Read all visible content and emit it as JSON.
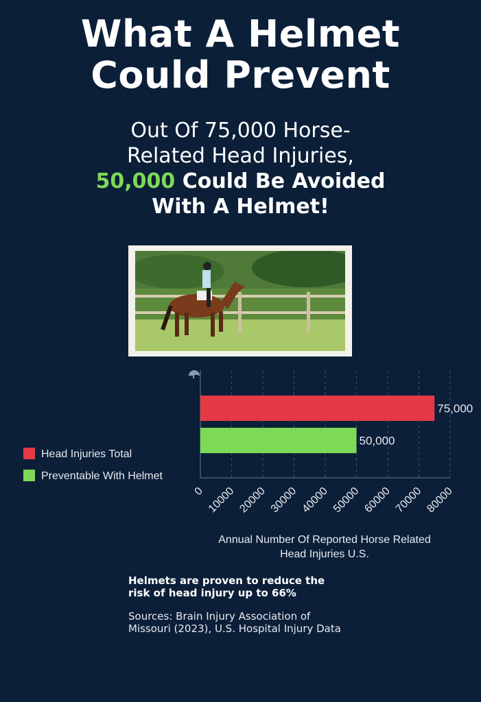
{
  "header": {
    "title_line1": "What A Helmet",
    "title_line2": "Could Prevent"
  },
  "subtitle": {
    "line1": "Out Of 75,000 Horse-",
    "line2": "Related Head Injuries,",
    "highlight": "50,000",
    "line3_rest": " Could Be Avoided",
    "line4": "With A Helmet!"
  },
  "photo": {
    "description_icon": "horse-rider-photo"
  },
  "chart_data": {
    "type": "bar",
    "orientation": "horizontal",
    "categories": [
      "Head Injuries Total",
      "Preventable With Helmet"
    ],
    "values": [
      75000,
      50000
    ],
    "data_labels": [
      "75,000",
      "50,000"
    ],
    "colors": [
      "#e63946",
      "#7ed957"
    ],
    "xlim": [
      0,
      80000
    ],
    "xticks": [
      "0",
      "10000",
      "20000",
      "30000",
      "40000",
      "50000",
      "60000",
      "70000",
      "80000"
    ],
    "xlabel_line1": "Annual Number Of Reported Horse Related",
    "xlabel_line2": "Head Injuries U.S.",
    "grid": "vertical dashed",
    "legend_placement": "left",
    "legend": [
      "Head Injuries Total",
      "Preventable With Helmet"
    ],
    "icon": "helmet-icon"
  },
  "note": "Helmets are proven to reduce the risk of head injury up to 66%",
  "sources": "Sources: Brain Injury Association of Missouri (2023), U.S. Hospital Injury Data",
  "colors": {
    "background": "#0b1f38",
    "accent_green": "#7ed957",
    "accent_red": "#e63946"
  }
}
